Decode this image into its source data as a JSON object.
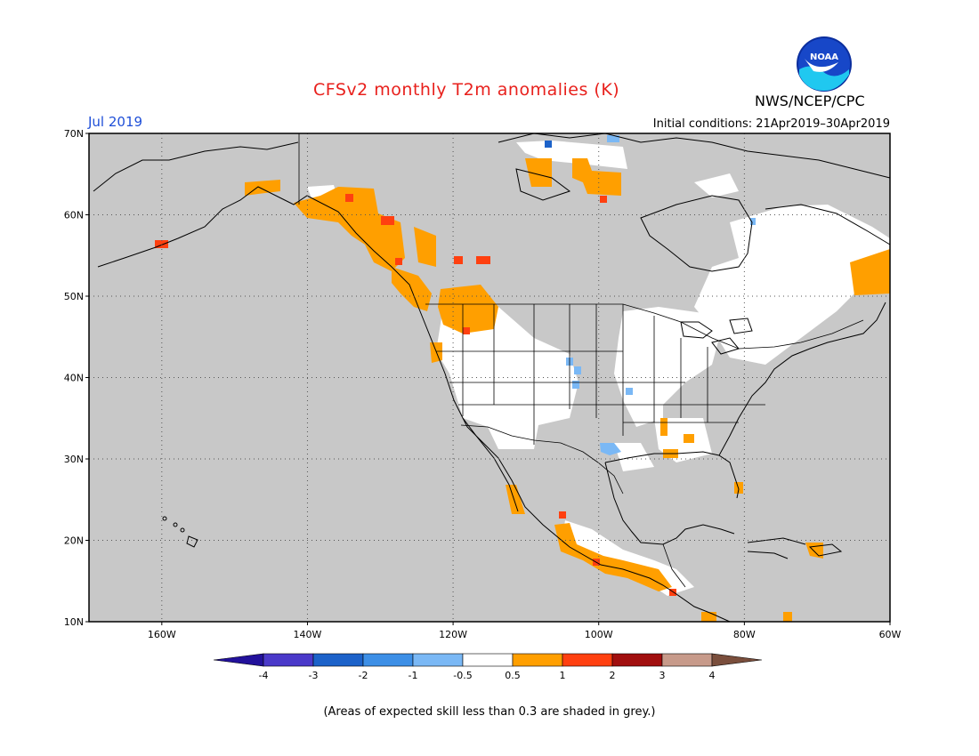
{
  "header": {
    "title": "CFSv2 monthly T2m anomalies (K)",
    "agency": "NWS/NCEP/CPC",
    "month": "Jul 2019",
    "initial_conditions": "Initial conditions: 21Apr2019–30Apr2019",
    "logo_text": "NOAA"
  },
  "map": {
    "projection": "lat-lon",
    "lon_range": [
      -170,
      -60
    ],
    "lat_range": [
      10,
      70
    ],
    "lat_labels": [
      "70N",
      "60N",
      "50N",
      "40N",
      "30N",
      "20N",
      "10N"
    ],
    "lon_labels": [
      "160W",
      "140W",
      "120W",
      "100W",
      "80W",
      "60W"
    ],
    "grid": "dotted",
    "background_color": "#c8c8c8"
  },
  "colorbar": {
    "labels": [
      "-4",
      "-3",
      "-2",
      "-1",
      "-0.5",
      "0.5",
      "1",
      "2",
      "3",
      "4"
    ],
    "colors": [
      "#22119b",
      "#4a39c9",
      "#1c62c9",
      "#3d8fe6",
      "#7ab8f5",
      "#ffffff",
      "#ff9f00",
      "#ff4010",
      "#a10f0f",
      "#c79a8a",
      "#7a4e3c"
    ]
  },
  "footnote": "(Areas of expected skill less than 0.3 are shaded in grey.)"
}
